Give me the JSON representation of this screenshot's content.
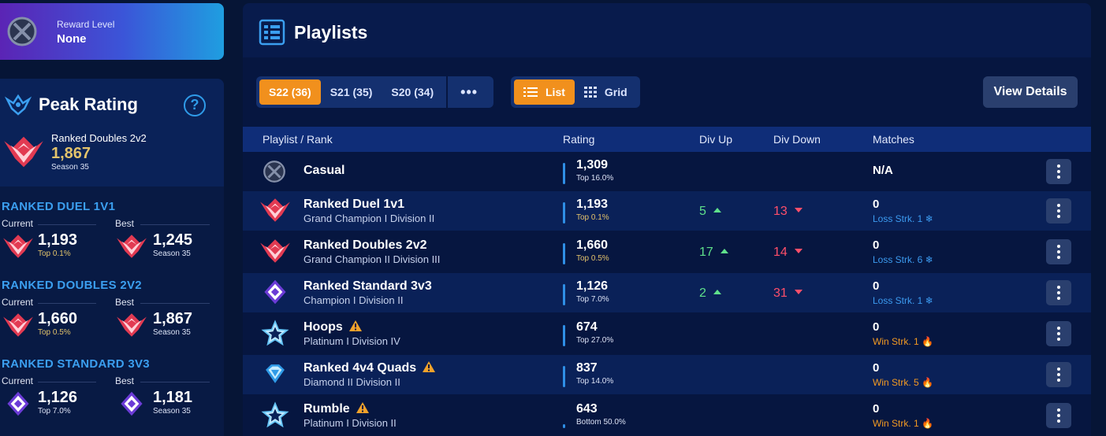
{
  "reward": {
    "label": "Reward Level",
    "value": "None",
    "icon": "unranked-icon"
  },
  "peak": {
    "title": "Peak Rating",
    "playlist": "Ranked Doubles 2v2",
    "rating": "1,867",
    "season": "Season 35",
    "modes": [
      {
        "name": "RANKED DUEL 1V1",
        "current_label": "Current",
        "best_label": "Best",
        "current": "1,193",
        "current_sub": "Top 0.1%",
        "best": "1,245",
        "best_sub": "Season 35"
      },
      {
        "name": "RANKED DOUBLES 2V2",
        "current_label": "Current",
        "best_label": "Best",
        "current": "1,660",
        "current_sub": "Top 0.5%",
        "best": "1,867",
        "best_sub": "Season 35"
      },
      {
        "name": "RANKED STANDARD 3V3",
        "current_label": "Current",
        "best_label": "Best",
        "current": "1,126",
        "current_sub": "Top 7.0%",
        "best": "1,181",
        "best_sub": "Season 35"
      }
    ]
  },
  "playlists": {
    "title": "Playlists",
    "seasons": [
      "S22 (36)",
      "S21 (35)",
      "S20 (34)"
    ],
    "more": "•••",
    "views": [
      "List",
      "Grid"
    ],
    "view_details": "View Details",
    "columns": [
      "Playlist / Rank",
      "Rating",
      "Div Up",
      "Div Down",
      "Matches"
    ],
    "rows": [
      {
        "name": "Casual",
        "rank": "",
        "rating": "1,309",
        "top": "Top 16.0%",
        "div_up": "",
        "div_down": "",
        "matches": "N/A",
        "streak": ""
      },
      {
        "name": "Ranked Duel 1v1",
        "rank": "Grand Champion I Division II",
        "rating": "1,193",
        "top": "Top 0.1%",
        "div_up": "5",
        "div_down": "13",
        "matches": "0",
        "streak": "Loss Strk. 1"
      },
      {
        "name": "Ranked Doubles 2v2",
        "rank": "Grand Champion II Division III",
        "rating": "1,660",
        "top": "Top 0.5%",
        "div_up": "17",
        "div_down": "14",
        "matches": "0",
        "streak": "Loss Strk. 6"
      },
      {
        "name": "Ranked Standard 3v3",
        "rank": "Champion I Division II",
        "rating": "1,126",
        "top": "Top 7.0%",
        "div_up": "2",
        "div_down": "31",
        "matches": "0",
        "streak": "Loss Strk. 1"
      },
      {
        "name": "Hoops",
        "rank": "Platinum I Division IV",
        "rating": "674",
        "top": "Top 27.0%",
        "div_up": "",
        "div_down": "",
        "matches": "0",
        "streak": "Win Strk. 1"
      },
      {
        "name": "Ranked 4v4 Quads",
        "rank": "Diamond II Division II",
        "rating": "837",
        "top": "Top 14.0%",
        "div_up": "",
        "div_down": "",
        "matches": "0",
        "streak": "Win Strk. 5"
      },
      {
        "name": "Rumble",
        "rank": "Platinum I Division II",
        "rating": "643",
        "top": "Bottom 50.0%",
        "div_up": "",
        "div_down": "",
        "matches": "0",
        "streak": "Win Strk. 1"
      }
    ]
  },
  "colors": {
    "accent": "#f1901d",
    "gold": "#e3c36b",
    "up": "#5fe08b",
    "down": "#ff4f6a",
    "loss": "#3c9bf0",
    "win": "#f29a22"
  }
}
